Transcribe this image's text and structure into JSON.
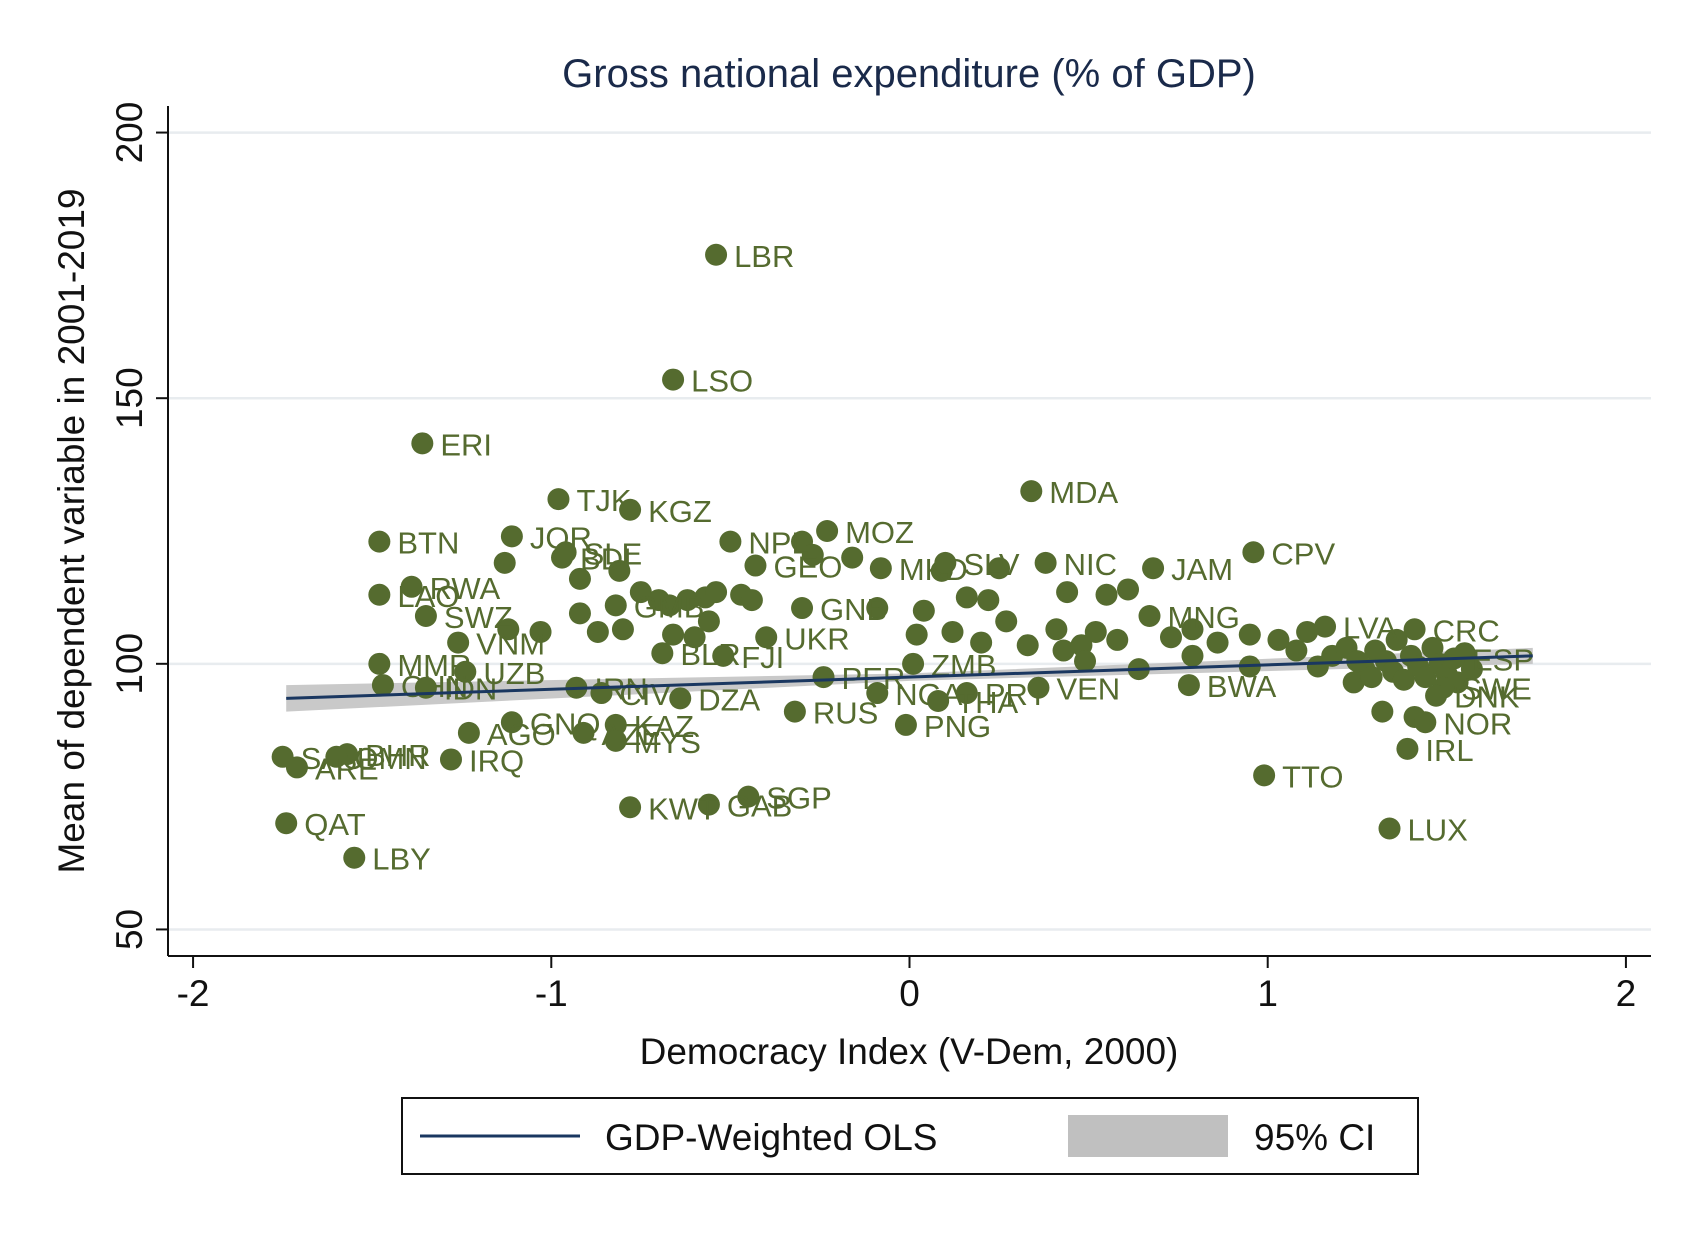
{
  "chart_data": {
    "type": "scatter",
    "title": "Gross national expenditure (% of GDP)",
    "xlabel": "Democracy Index (V-Dem, 2000)",
    "ylabel": "Mean of dependent variable in 2001-2019",
    "xlim": [
      -2.07,
      2.07
    ],
    "ylim": [
      45,
      205
    ],
    "xticks": [
      -2,
      -1,
      0,
      1,
      2
    ],
    "xtick_labels": [
      "-2",
      "-1",
      "0",
      "1",
      "2"
    ],
    "yticks": [
      50,
      100,
      150,
      200
    ],
    "ytick_labels": [
      "50",
      "100",
      "150",
      "200"
    ],
    "grid": "horizontal",
    "legend": {
      "placement": "bottom",
      "fit_label": "GDP-Weighted OLS",
      "ci_label": "95% CI"
    },
    "colors": {
      "points": "#556b2f",
      "fit": "#1a3760",
      "ci": "#c0c0c0",
      "title": "#1a2a4a",
      "text": "#111111",
      "label": "#556b2f"
    },
    "fit_line": {
      "x": [
        -1.74,
        1.74
      ],
      "y": [
        93.5,
        101.5
      ]
    },
    "ci_band": {
      "x": [
        -1.74,
        0,
        1.74
      ],
      "lower": [
        91.0,
        96.8,
        100.0
      ],
      "upper": [
        96.0,
        98.2,
        103.0
      ]
    },
    "points": [
      {
        "label": "LBR",
        "x": -0.54,
        "y": 177.0
      },
      {
        "label": "LSO",
        "x": -0.66,
        "y": 153.5
      },
      {
        "label": "ERI",
        "x": -1.36,
        "y": 141.5
      },
      {
        "label": "MDA",
        "x": 0.34,
        "y": 132.5
      },
      {
        "label": "TJK",
        "x": -0.98,
        "y": 131.0
      },
      {
        "label": "KGZ",
        "x": -0.78,
        "y": 129.0
      },
      {
        "label": "BTN",
        "x": -1.48,
        "y": 123.0
      },
      {
        "label": "JOR",
        "x": -1.11,
        "y": 124.0
      },
      {
        "label": "NPL",
        "x": -0.5,
        "y": 123.0
      },
      {
        "label": "MOZ",
        "x": -0.23,
        "y": 125.0
      },
      {
        "label": "BDI",
        "x": -0.97,
        "y": 120.0
      },
      {
        "label": "SLE",
        "x": -0.96,
        "y": 121.0
      },
      {
        "label": "CPV",
        "x": 0.96,
        "y": 121.0
      },
      {
        "label": "LAO",
        "x": -1.48,
        "y": 113.0
      },
      {
        "label": "RWA",
        "x": -1.39,
        "y": 114.5
      },
      {
        "label": "SWZ",
        "x": -1.35,
        "y": 109.0
      },
      {
        "label": "GEO",
        "x": -0.43,
        "y": 118.5
      },
      {
        "label": "MKD",
        "x": -0.08,
        "y": 118.0
      },
      {
        "label": "SLV",
        "x": 0.1,
        "y": 119.0
      },
      {
        "label": "NIC",
        "x": 0.38,
        "y": 119.0
      },
      {
        "label": "JAM",
        "x": 0.68,
        "y": 118.0
      },
      {
        "label": "GMB",
        "x": -0.82,
        "y": 111.0
      },
      {
        "label": "GNB",
        "x": -0.3,
        "y": 110.5
      },
      {
        "label": "UKR",
        "x": -0.4,
        "y": 105.0
      },
      {
        "label": "MNG",
        "x": 0.67,
        "y": 109.0
      },
      {
        "label": "VNM",
        "x": -1.26,
        "y": 104.0
      },
      {
        "label": "BLR",
        "x": -0.69,
        "y": 102.0
      },
      {
        "label": "FJI",
        "x": -0.52,
        "y": 101.5
      },
      {
        "label": "MMR",
        "x": -1.48,
        "y": 100.0
      },
      {
        "label": "UZB",
        "x": -1.24,
        "y": 98.5
      },
      {
        "label": "CHN",
        "x": -1.47,
        "y": 96.0
      },
      {
        "label": "IDN",
        "x": -1.35,
        "y": 95.5
      },
      {
        "label": "IRN",
        "x": -0.93,
        "y": 95.5
      },
      {
        "label": "CIV",
        "x": -0.86,
        "y": 94.5
      },
      {
        "label": "DZA",
        "x": -0.64,
        "y": 93.5
      },
      {
        "label": "PER",
        "x": -0.24,
        "y": 97.5
      },
      {
        "label": "ZMB",
        "x": 0.01,
        "y": 100.0
      },
      {
        "label": "NGA",
        "x": -0.09,
        "y": 94.5
      },
      {
        "label": "PRY",
        "x": 0.16,
        "y": 94.5
      },
      {
        "label": "THA",
        "x": 0.08,
        "y": 93.0
      },
      {
        "label": "VEN",
        "x": 0.36,
        "y": 95.5
      },
      {
        "label": "RUS",
        "x": -0.32,
        "y": 91.0
      },
      {
        "label": "PNG",
        "x": -0.01,
        "y": 88.5
      },
      {
        "label": "BWA",
        "x": 0.78,
        "y": 96.0
      },
      {
        "label": "GNQ",
        "x": -1.11,
        "y": 89.0
      },
      {
        "label": "KAZ",
        "x": -0.82,
        "y": 88.5
      },
      {
        "label": "AGO",
        "x": -1.23,
        "y": 87.0
      },
      {
        "label": "AZE",
        "x": -0.91,
        "y": 87.0
      },
      {
        "label": "MYS",
        "x": -0.82,
        "y": 85.5
      },
      {
        "label": "SAU",
        "x": -1.75,
        "y": 82.5
      },
      {
        "label": "BHR",
        "x": -1.57,
        "y": 83.0
      },
      {
        "label": "OMN",
        "x": -1.6,
        "y": 82.5
      },
      {
        "label": "ARE",
        "x": -1.71,
        "y": 80.5
      },
      {
        "label": "IRQ",
        "x": -1.28,
        "y": 82.0
      },
      {
        "label": "TTO",
        "x": 0.99,
        "y": 79.0
      },
      {
        "label": "IRL",
        "x": 1.39,
        "y": 84.0
      },
      {
        "label": "NOR",
        "x": 1.44,
        "y": 89.0
      },
      {
        "label": "QAT",
        "x": -1.74,
        "y": 70.0
      },
      {
        "label": "SGP",
        "x": -0.45,
        "y": 75.0
      },
      {
        "label": "GAB",
        "x": -0.56,
        "y": 73.5
      },
      {
        "label": "KWT",
        "x": -0.78,
        "y": 73.0
      },
      {
        "label": "LUX",
        "x": 1.34,
        "y": 69.0
      },
      {
        "label": "LBY",
        "x": -1.55,
        "y": 63.5
      },
      {
        "label": "SWE",
        "x": 1.49,
        "y": 95.5
      },
      {
        "label": "DNK",
        "x": 1.47,
        "y": 94.0
      },
      {
        "label": "CRC",
        "x": 1.41,
        "y": 106.5
      },
      {
        "label": "ESP",
        "x": 1.52,
        "y": 101.0
      },
      {
        "label": "LVA",
        "x": 1.16,
        "y": 107.0
      }
    ],
    "unlabeled_points": [
      {
        "x": -1.12,
        "y": 106.5
      },
      {
        "x": -1.03,
        "y": 106.0
      },
      {
        "x": -0.92,
        "y": 109.5
      },
      {
        "x": -0.87,
        "y": 106.0
      },
      {
        "x": -0.8,
        "y": 106.5
      },
      {
        "x": -0.92,
        "y": 116.0
      },
      {
        "x": -0.81,
        "y": 117.5
      },
      {
        "x": -0.75,
        "y": 113.5
      },
      {
        "x": -0.7,
        "y": 112.0
      },
      {
        "x": -0.67,
        "y": 111.0
      },
      {
        "x": -0.62,
        "y": 112.0
      },
      {
        "x": -0.57,
        "y": 112.5
      },
      {
        "x": -0.54,
        "y": 113.5
      },
      {
        "x": -0.47,
        "y": 113.0
      },
      {
        "x": -0.44,
        "y": 112.0
      },
      {
        "x": -0.6,
        "y": 105.0
      },
      {
        "x": -0.66,
        "y": 105.5
      },
      {
        "x": -0.56,
        "y": 108.0
      },
      {
        "x": -0.3,
        "y": 123.0
      },
      {
        "x": -0.27,
        "y": 120.5
      },
      {
        "x": -0.16,
        "y": 120.0
      },
      {
        "x": -1.13,
        "y": 119.0
      },
      {
        "x": -0.09,
        "y": 110.5
      },
      {
        "x": 0.04,
        "y": 110.0
      },
      {
        "x": 0.09,
        "y": 117.5
      },
      {
        "x": 0.16,
        "y": 112.5
      },
      {
        "x": 0.22,
        "y": 112.0
      },
      {
        "x": 0.25,
        "y": 118.0
      },
      {
        "x": 0.44,
        "y": 113.5
      },
      {
        "x": 0.55,
        "y": 113.0
      },
      {
        "x": 0.61,
        "y": 114.0
      },
      {
        "x": 0.12,
        "y": 106.0
      },
      {
        "x": 0.02,
        "y": 105.5
      },
      {
        "x": 0.2,
        "y": 104.0
      },
      {
        "x": 0.27,
        "y": 108.0
      },
      {
        "x": 0.33,
        "y": 103.5
      },
      {
        "x": 0.41,
        "y": 106.5
      },
      {
        "x": 0.43,
        "y": 102.5
      },
      {
        "x": 0.48,
        "y": 103.5
      },
      {
        "x": 0.52,
        "y": 106.0
      },
      {
        "x": 0.58,
        "y": 104.5
      },
      {
        "x": 0.64,
        "y": 99.0
      },
      {
        "x": 0.49,
        "y": 100.5
      },
      {
        "x": 0.73,
        "y": 105.0
      },
      {
        "x": 0.79,
        "y": 101.5
      },
      {
        "x": 0.86,
        "y": 104.0
      },
      {
        "x": 0.79,
        "y": 106.5
      },
      {
        "x": 0.95,
        "y": 105.5
      },
      {
        "x": 0.95,
        "y": 99.5
      },
      {
        "x": 1.03,
        "y": 104.5
      },
      {
        "x": 1.08,
        "y": 102.5
      },
      {
        "x": 1.11,
        "y": 106.0
      },
      {
        "x": 1.14,
        "y": 99.5
      },
      {
        "x": 1.18,
        "y": 101.5
      },
      {
        "x": 1.22,
        "y": 103.0
      },
      {
        "x": 1.24,
        "y": 96.5
      },
      {
        "x": 1.27,
        "y": 99.0
      },
      {
        "x": 1.3,
        "y": 102.5
      },
      {
        "x": 1.32,
        "y": 91.0
      },
      {
        "x": 1.33,
        "y": 100.5
      },
      {
        "x": 1.35,
        "y": 98.5
      },
      {
        "x": 1.36,
        "y": 104.5
      },
      {
        "x": 1.38,
        "y": 97.0
      },
      {
        "x": 1.4,
        "y": 101.5
      },
      {
        "x": 1.42,
        "y": 99.5
      },
      {
        "x": 1.44,
        "y": 97.5
      },
      {
        "x": 1.46,
        "y": 103.0
      },
      {
        "x": 1.48,
        "y": 100.0
      },
      {
        "x": 1.5,
        "y": 98.0
      },
      {
        "x": 1.53,
        "y": 96.5
      },
      {
        "x": 1.55,
        "y": 102.0
      },
      {
        "x": 1.57,
        "y": 99.0
      },
      {
        "x": 1.41,
        "y": 90.0
      },
      {
        "x": 1.29,
        "y": 97.5
      },
      {
        "x": 1.25,
        "y": 100.5
      }
    ]
  }
}
